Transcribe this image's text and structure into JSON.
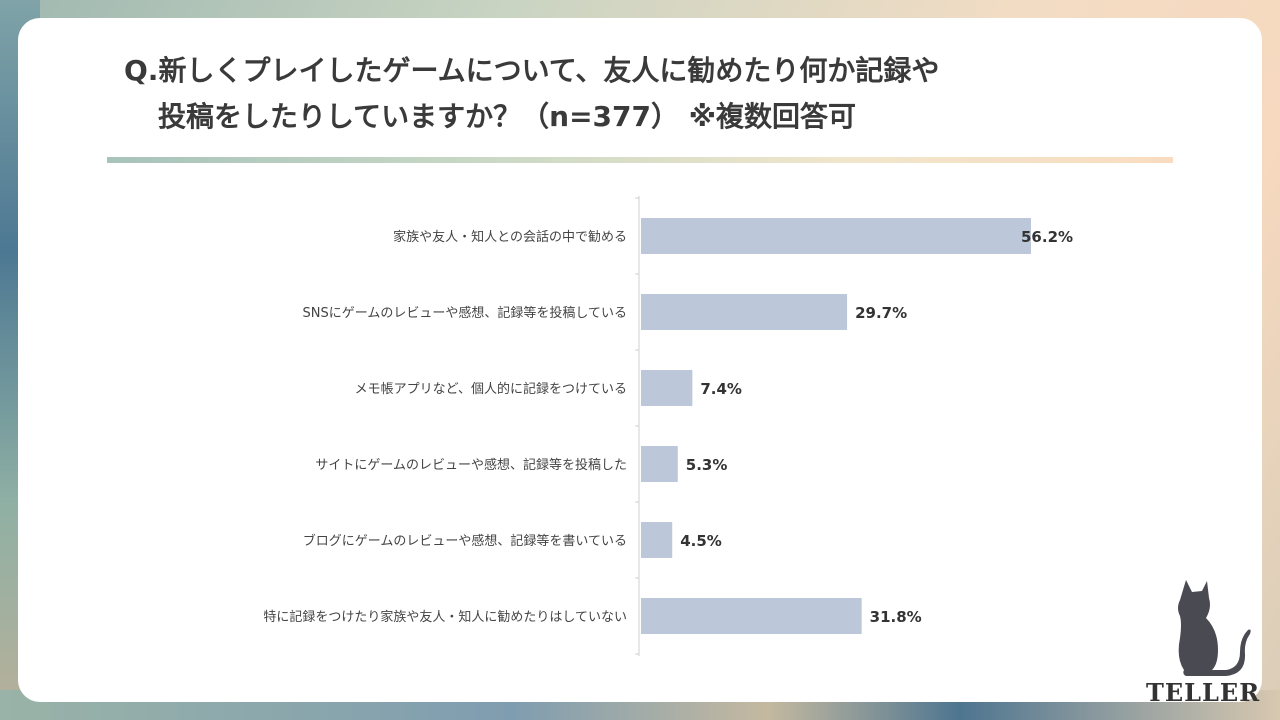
{
  "title": {
    "line1": "Q.新しくプレイしたゲームについて、友人に勧めたり何か記録や",
    "line2": "投稿をしたりしていますか？（n=377） ※複数回答可"
  },
  "logo": {
    "text": "TELLER",
    "icon": "cat-silhouette-icon"
  },
  "colors": {
    "bar": "#bcc8da",
    "axis": "#cfcfcf",
    "text": "#333333"
  },
  "chart_data": {
    "type": "bar",
    "orientation": "horizontal",
    "categories": [
      "家族や友人・知人との会話の中で勧める",
      "SNSにゲームのレビューや感想、記録等を投稿している",
      "メモ帳アプリなど、個人的に記録をつけている",
      "サイトにゲームのレビューや感想、記録等を投稿した",
      "ブログにゲームのレビューや感想、記録等を書いている",
      "特に記録をつけたり家族や友人・知人に勧めたりはしていない"
    ],
    "values": [
      56.2,
      29.7,
      7.4,
      5.3,
      4.5,
      31.8
    ],
    "value_labels": [
      "56.2%",
      "29.7%",
      "7.4%",
      "5.3%",
      "4.5%",
      "31.8%"
    ],
    "unit": "%",
    "grid": false,
    "legend": "none"
  }
}
